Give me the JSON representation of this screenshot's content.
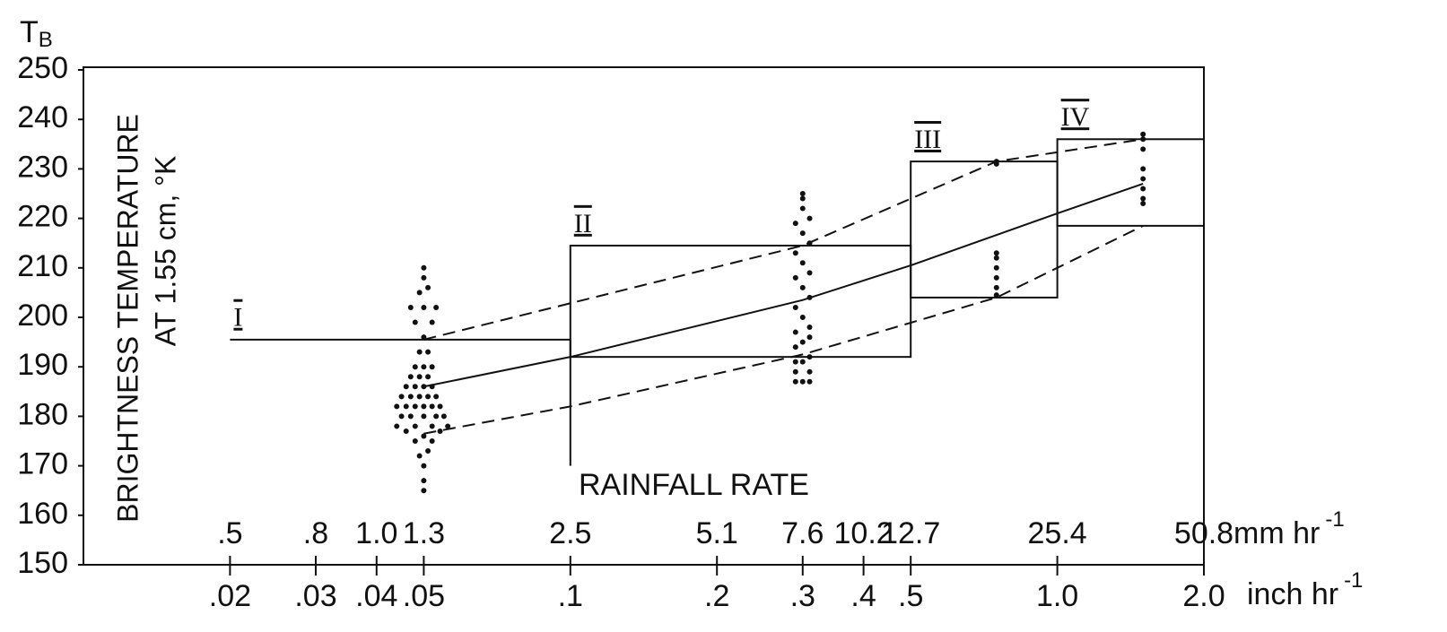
{
  "chart_data": {
    "type": "scatter",
    "y_symbol": {
      "main": "T",
      "sub": "B"
    },
    "ylabel": [
      "BRIGHTNESS TEMPERATURE",
      "AT 1.55 cm, °K"
    ],
    "xlabel": "RAINFALL RATE",
    "x_unit_inch": {
      "text": "inch hr",
      "sup": "-1"
    },
    "x_unit_mm": {
      "text": "mm hr",
      "sup": "-1"
    },
    "xscale": "log",
    "xlim": [
      0.01,
      2.0
    ],
    "ylim": [
      150,
      250
    ],
    "yticks": [
      150,
      160,
      170,
      180,
      190,
      200,
      210,
      220,
      230,
      240,
      250
    ],
    "xticks": [
      {
        "value": 0.02,
        "label": ".02"
      },
      {
        "value": 0.03,
        "label": ".03"
      },
      {
        "value": 0.04,
        "label": ".04"
      },
      {
        "value": 0.05,
        "label": ".05"
      },
      {
        "value": 0.1,
        "label": ".1"
      },
      {
        "value": 0.2,
        "label": ".2"
      },
      {
        "value": 0.3,
        "label": ".3"
      },
      {
        "value": 0.4,
        "label": ".4"
      },
      {
        "value": 0.5,
        "label": ".5"
      },
      {
        "value": 1.0,
        "label": "1.0"
      },
      {
        "value": 2.0,
        "label": "2.0"
      }
    ],
    "xticks_mm": [
      {
        "value": 0.02,
        "label": ".5"
      },
      {
        "value": 0.03,
        "label": ".8"
      },
      {
        "value": 0.04,
        "label": "1.0"
      },
      {
        "value": 0.05,
        "label": "1.3"
      },
      {
        "value": 0.1,
        "label": "2.5"
      },
      {
        "value": 0.2,
        "label": "5.1"
      },
      {
        "value": 0.3,
        "label": "7.6"
      },
      {
        "value": 0.4,
        "label": "10.2"
      },
      {
        "value": 0.5,
        "label": "12.7"
      },
      {
        "value": 1.0,
        "label": "25.4"
      },
      {
        "value": 2.0,
        "label": "50.8"
      }
    ],
    "regions": [
      {
        "label": "I",
        "x": [
          0.02,
          0.1
        ],
        "y": [
          170,
          195.5
        ],
        "sides": [
          "top",
          "right"
        ]
      },
      {
        "label": "II",
        "x": [
          0.1,
          0.5
        ],
        "y": [
          192,
          214.5
        ]
      },
      {
        "label": "III",
        "x": [
          0.5,
          1.0
        ],
        "y": [
          204,
          231.5
        ]
      },
      {
        "label": "IV",
        "x": [
          1.0,
          2.0
        ],
        "y": [
          218.5,
          236
        ]
      }
    ],
    "lines": [
      {
        "style": "solid",
        "x": [
          0.05,
          0.1,
          0.3,
          0.5,
          1.0,
          1.5
        ],
        "y": [
          186,
          192,
          203.5,
          210.5,
          221,
          227
        ]
      },
      {
        "style": "dashed",
        "x": [
          0.05,
          0.3,
          0.75,
          1.5
        ],
        "y": [
          195.5,
          214.5,
          231.5,
          236
        ]
      },
      {
        "style": "dashed",
        "x": [
          0.05,
          0.1,
          0.3,
          0.75,
          1.0,
          1.5
        ],
        "y": [
          176.5,
          182,
          192.5,
          204,
          210,
          218.5
        ]
      }
    ],
    "series": [
      {
        "color": "#111111",
        "x": [
          0.05,
          0.05,
          0.05,
          0.049,
          0.051,
          0.048,
          0.052,
          0.05,
          0.046,
          0.054,
          0.044,
          0.048,
          0.052,
          0.056,
          0.045,
          0.047,
          0.05,
          0.053,
          0.055,
          0.044,
          0.046,
          0.048,
          0.05,
          0.052,
          0.054,
          0.045,
          0.047,
          0.049,
          0.051,
          0.053,
          0.046,
          0.048,
          0.05,
          0.052,
          0.047,
          0.049,
          0.051,
          0.048,
          0.05,
          0.052,
          0.049,
          0.051,
          0.05,
          0.048,
          0.052,
          0.047,
          0.05,
          0.053,
          0.049,
          0.051,
          0.05,
          0.05,
          0.29,
          0.31,
          0.3,
          0.29,
          0.31,
          0.29,
          0.3,
          0.31,
          0.29,
          0.3,
          0.31,
          0.29,
          0.31,
          0.3,
          0.29,
          0.31,
          0.3,
          0.29,
          0.31,
          0.3,
          0.29,
          0.31,
          0.3,
          0.29,
          0.31,
          0.3,
          0.3,
          0.3,
          0.75,
          0.75,
          0.75,
          0.75,
          0.75,
          0.75,
          0.75,
          0.75,
          1.5,
          1.5,
          1.5,
          1.5,
          1.5,
          1.5,
          1.5,
          1.5
        ],
        "y": [
          165,
          167,
          170,
          172,
          173,
          175,
          175,
          176,
          177,
          177,
          178,
          178,
          178,
          178,
          180,
          180,
          180,
          180,
          180,
          182,
          182,
          182,
          182,
          182,
          182,
          184,
          184,
          184,
          184,
          184,
          186,
          186,
          186,
          186,
          188,
          188,
          188,
          190,
          190,
          190,
          193,
          193,
          196,
          199,
          199,
          202,
          202,
          202,
          205,
          206,
          208,
          210,
          187,
          187,
          187,
          189,
          189,
          191,
          191,
          192,
          194,
          195,
          196,
          197,
          198,
          200,
          202,
          204,
          206,
          208,
          209,
          211,
          213,
          215,
          217,
          219,
          220,
          222,
          224,
          225,
          204.5,
          206,
          208,
          210,
          212,
          213,
          231,
          231.5,
          223,
          224,
          226,
          228,
          230,
          234,
          236,
          237
        ]
      }
    ]
  }
}
